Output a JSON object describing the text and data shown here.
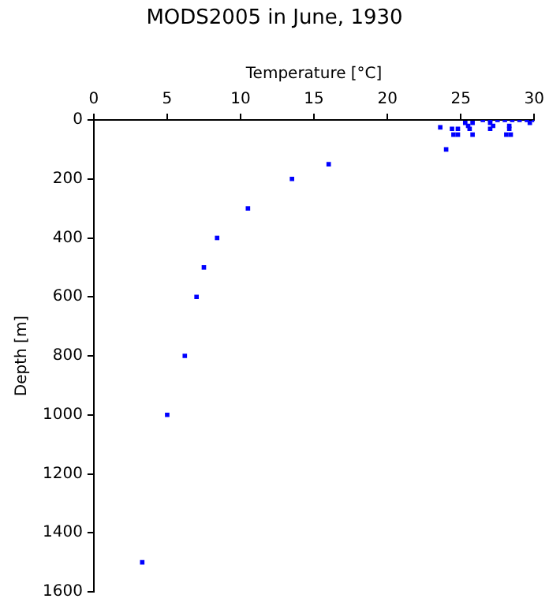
{
  "chart_data": {
    "type": "scatter",
    "title": "MODS2005 in June, 1930",
    "xlabel": "Temperature [°C]",
    "ylabel": "Depth [m]",
    "x": [
      3.3,
      5.0,
      6.2,
      7.0,
      7.5,
      8.4,
      10.5,
      13.5,
      16.0,
      24.0,
      23.6,
      24.4,
      24.8,
      25.6,
      27.0,
      28.3,
      24.5,
      24.8,
      25.8,
      28.1,
      28.4,
      25.5,
      27.2,
      28.3,
      25.3,
      25.8,
      27.0,
      29.7,
      26.5,
      27.0,
      27.5,
      28.0,
      28.5,
      29.0,
      29.5,
      30.0
    ],
    "values": [
      1500,
      1000,
      800,
      600,
      500,
      400,
      300,
      200,
      150,
      100,
      25,
      30,
      30,
      30,
      30,
      30,
      50,
      50,
      50,
      50,
      50,
      20,
      20,
      20,
      10,
      10,
      10,
      10,
      0,
      0,
      0,
      0,
      0,
      0,
      0,
      0
    ],
    "color": "#0000ff",
    "marker": "square",
    "grid": false,
    "legend": false,
    "xlim": [
      0,
      30
    ],
    "xticks": [
      0,
      5,
      10,
      15,
      20,
      25,
      30
    ],
    "ylim": [
      1600,
      0
    ],
    "yticks": [
      0,
      200,
      400,
      600,
      800,
      1000,
      1200,
      1400,
      1600
    ]
  }
}
